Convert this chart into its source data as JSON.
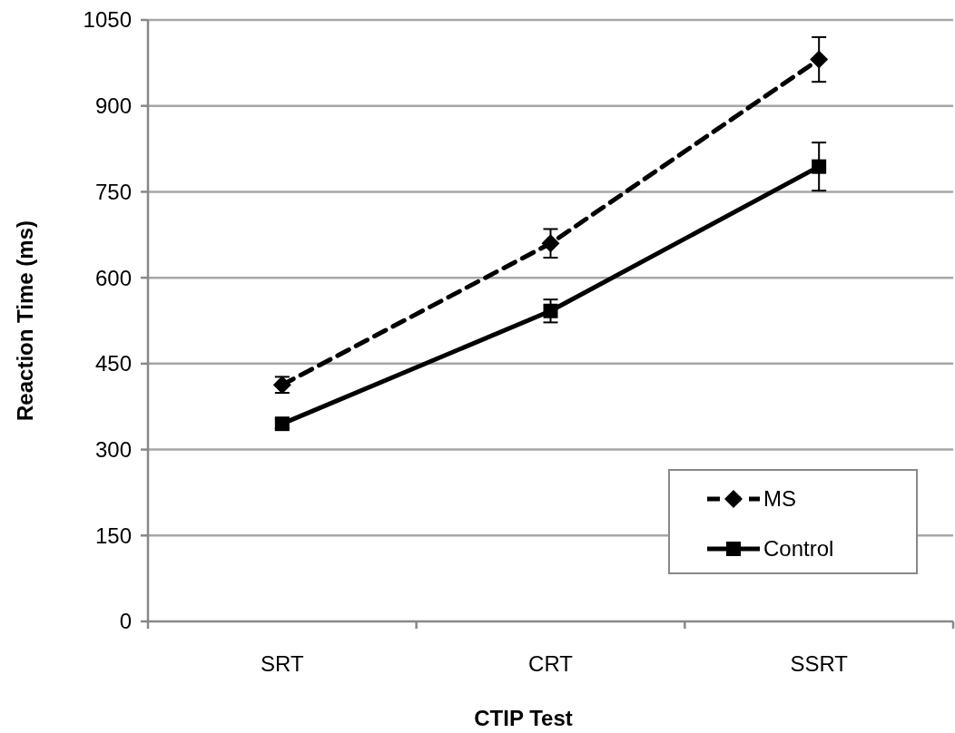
{
  "chart_data": {
    "type": "line",
    "xlabel": "CTIP Test",
    "ylabel": "Reaction Time (ms)",
    "categories": [
      "SRT",
      "CRT",
      "SSRT"
    ],
    "series": [
      {
        "name": "MS",
        "color": "#000000",
        "values": [
          413,
          660,
          981
        ],
        "errors": [
          14,
          25,
          39
        ],
        "marker": "diamond",
        "line_style": "dashed"
      },
      {
        "name": "Control",
        "color": "#000000",
        "values": [
          345,
          542,
          794
        ],
        "errors": [
          8,
          20,
          42
        ],
        "marker": "square",
        "line_style": "solid"
      }
    ],
    "ylim": [
      0,
      1050
    ],
    "yticks": [
      0,
      150,
      300,
      450,
      600,
      750,
      900,
      1050
    ],
    "grid": "y",
    "legend": "bottom right"
  }
}
